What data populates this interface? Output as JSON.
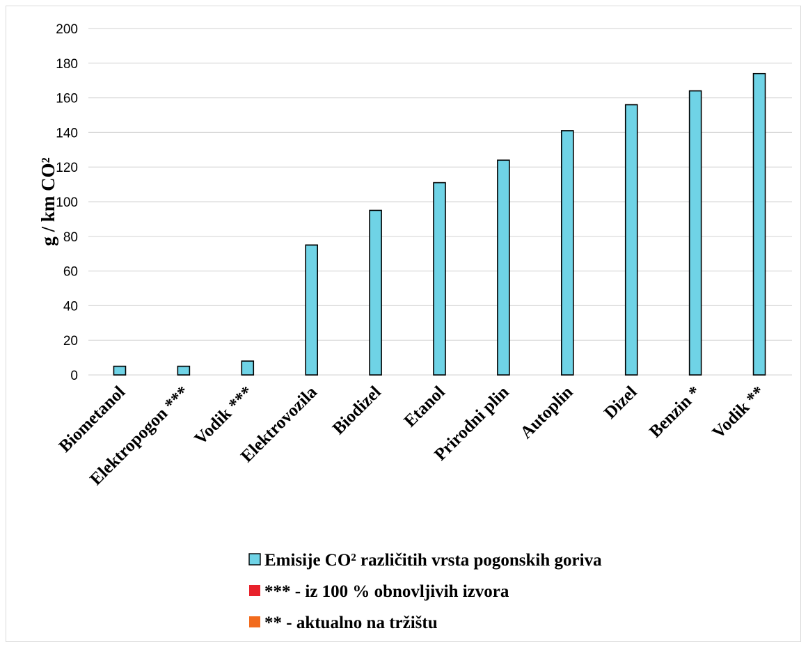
{
  "chart_data": {
    "type": "bar",
    "categories": [
      "Biometanol",
      "Elektropogon ***",
      "Vodik ***",
      "Elektrovozila",
      "Biodizel",
      "Etanol",
      "Prirodni plin",
      "Autoplin",
      "Dizel",
      "Benzin *",
      "Vodik **"
    ],
    "series": [
      {
        "name": "Emisije CO² različitih vrsta pogonskih goriva",
        "values": [
          5,
          5,
          8,
          75,
          95,
          111,
          124,
          141,
          156,
          164,
          174
        ],
        "color": "#6fd3e6"
      }
    ],
    "ylabel": "g / km CO²",
    "ylim": [
      0,
      200
    ],
    "yticks": [
      0,
      20,
      40,
      60,
      80,
      100,
      120,
      140,
      160,
      180,
      200
    ],
    "grid": true,
    "legend_position": "bottom",
    "legend": [
      {
        "label": "Emisije CO² različitih vrsta pogonskih goriva",
        "color": "#6fd3e6"
      },
      {
        "label": "*** - iz 100 % obnovljivih izvora",
        "color": "#e8212b"
      },
      {
        "label": "** - aktualno na tržištu",
        "color": "#f26b1d"
      }
    ]
  }
}
